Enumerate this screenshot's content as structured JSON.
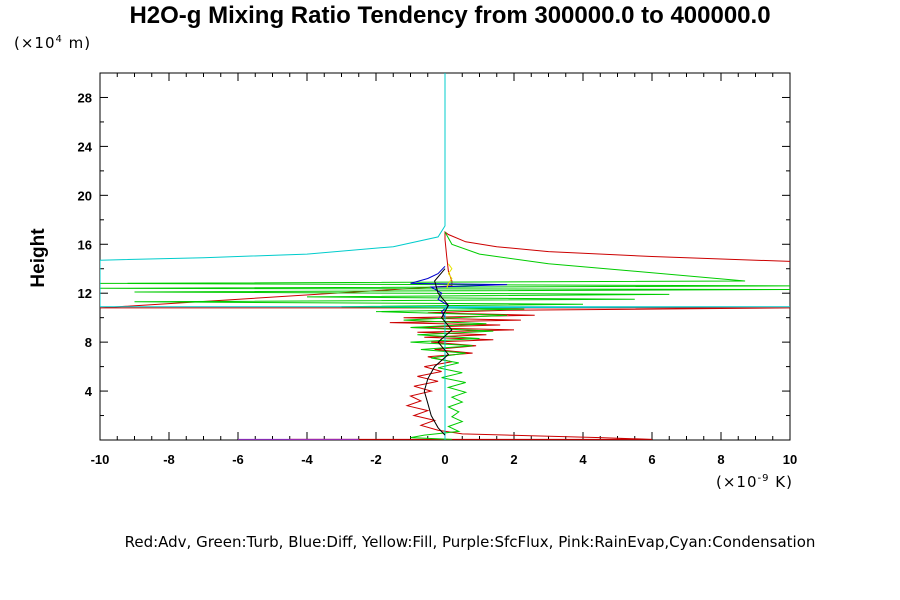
{
  "title": "H2O-g Mixing Ratio Tendency from 300000.0 to 400000.0",
  "y_unit_prefix": "(×10",
  "y_unit_exp": "4",
  "y_unit_suffix": " m)",
  "x_unit_prefix": "(×10",
  "x_unit_exp": "-9",
  "x_unit_suffix": " K)",
  "legend_text": "Red:Adv, Green:Turb, Blue:Diff, Yellow:Fill, Purple:SfcFlux, Pink:RainEvap,Cyan:Condensation",
  "chart_data": {
    "type": "line",
    "title": "H2O-g Mixing Ratio Tendency from 300000.0 to 400000.0",
    "xlabel": "(×10^-9 K)",
    "ylabel": "Height",
    "y_units": "(×10^4 m)",
    "xlim": [
      -10,
      10
    ],
    "ylim": [
      0,
      30
    ],
    "x_ticks": [
      -10,
      -8,
      -6,
      -4,
      -2,
      0,
      2,
      4,
      6,
      8,
      10
    ],
    "y_ticks": [
      4,
      8,
      12,
      16,
      20,
      24,
      28
    ],
    "grid": false,
    "legend": "bottom text",
    "series": [
      {
        "name": "Adv",
        "color": "#cc0000",
        "points": [
          [
            10,
            14.6
          ],
          [
            6,
            15.0
          ],
          [
            3,
            15.4
          ],
          [
            1.5,
            15.8
          ],
          [
            0.6,
            16.2
          ],
          [
            0.1,
            16.8
          ],
          [
            0,
            17.0
          ],
          [
            0,
            16.4
          ],
          [
            0.05,
            15.0
          ],
          [
            0.1,
            13.8
          ],
          [
            0.2,
            13.0
          ],
          [
            0.2,
            12.6
          ],
          [
            -10,
            10.8
          ],
          [
            10,
            10.8
          ],
          [
            1.8,
            10.6
          ],
          [
            -0.5,
            10.4
          ],
          [
            2.6,
            10.2
          ],
          [
            -1.2,
            10.0
          ],
          [
            2.2,
            9.8
          ],
          [
            -1.6,
            9.6
          ],
          [
            1.6,
            9.4
          ],
          [
            -1.0,
            9.2
          ],
          [
            2.0,
            9.0
          ],
          [
            -0.8,
            8.8
          ],
          [
            1.2,
            8.6
          ],
          [
            -0.6,
            8.4
          ],
          [
            1.4,
            8.2
          ],
          [
            -0.4,
            8.0
          ],
          [
            0.9,
            7.7
          ],
          [
            -0.3,
            7.4
          ],
          [
            0.8,
            7.1
          ],
          [
            -0.5,
            6.8
          ],
          [
            0.2,
            6.4
          ],
          [
            -0.6,
            6.0
          ],
          [
            -0.1,
            5.6
          ],
          [
            -0.8,
            5.2
          ],
          [
            -0.2,
            4.8
          ],
          [
            -0.9,
            4.4
          ],
          [
            -0.4,
            4.0
          ],
          [
            -1.0,
            3.6
          ],
          [
            -0.7,
            3.2
          ],
          [
            -1.1,
            2.8
          ],
          [
            -0.5,
            2.4
          ],
          [
            -0.9,
            2.0
          ],
          [
            -0.3,
            1.6
          ],
          [
            -0.7,
            1.2
          ],
          [
            -0.2,
            0.8
          ],
          [
            0.5,
            0.5
          ],
          [
            4.5,
            0.2
          ],
          [
            6.0,
            0.05
          ],
          [
            -4.5,
            0.05
          ]
        ]
      },
      {
        "name": "Turb",
        "color": "#00cc00",
        "points": [
          [
            0,
            17.0
          ],
          [
            0.2,
            16.0
          ],
          [
            1.0,
            15.2
          ],
          [
            3,
            14.4
          ],
          [
            5.5,
            13.8
          ],
          [
            8.7,
            13.0
          ],
          [
            -10,
            12.8
          ],
          [
            10,
            12.6
          ],
          [
            -10,
            12.4
          ],
          [
            10,
            12.3
          ],
          [
            -9,
            12.1
          ],
          [
            6.5,
            11.9
          ],
          [
            -4,
            11.7
          ],
          [
            5.5,
            11.5
          ],
          [
            -9,
            11.3
          ],
          [
            4,
            11.1
          ],
          [
            -3,
            10.9
          ],
          [
            2.3,
            10.7
          ],
          [
            -2,
            10.5
          ],
          [
            1.8,
            10.2
          ],
          [
            -1.2,
            9.8
          ],
          [
            1.2,
            9.5
          ],
          [
            -1.0,
            9.2
          ],
          [
            1.4,
            8.9
          ],
          [
            -0.8,
            8.6
          ],
          [
            1.0,
            8.3
          ],
          [
            -1.0,
            8.0
          ],
          [
            0.8,
            7.7
          ],
          [
            -0.7,
            7.4
          ],
          [
            0.6,
            7.1
          ],
          [
            -0.4,
            6.7
          ],
          [
            0.4,
            6.3
          ],
          [
            -0.2,
            5.9
          ],
          [
            0.5,
            5.5
          ],
          [
            -0.1,
            5.1
          ],
          [
            0.6,
            4.7
          ],
          [
            0.1,
            4.3
          ],
          [
            0.6,
            3.9
          ],
          [
            0.2,
            3.5
          ],
          [
            0.5,
            3.1
          ],
          [
            0.1,
            2.7
          ],
          [
            0.4,
            2.3
          ],
          [
            0.2,
            1.9
          ],
          [
            0.5,
            1.5
          ],
          [
            0.1,
            1.1
          ],
          [
            0.4,
            0.7
          ],
          [
            -0.6,
            0.4
          ],
          [
            -1.0,
            0.2
          ],
          [
            0.2,
            0.05
          ]
        ]
      },
      {
        "name": "Diff",
        "color": "#0000cc",
        "points": [
          [
            0,
            14.2
          ],
          [
            -0.2,
            13.6
          ],
          [
            -0.5,
            13.2
          ],
          [
            -1.0,
            12.8
          ],
          [
            1.8,
            12.7
          ],
          [
            -0.4,
            12.5
          ],
          [
            -0.1,
            12.0
          ],
          [
            -0.2,
            11.5
          ],
          [
            0.1,
            11.0
          ],
          [
            -0.1,
            10.5
          ],
          [
            0,
            10.0
          ],
          [
            0,
            0.3
          ]
        ]
      },
      {
        "name": "Fill",
        "color": "#e6e600",
        "points": [
          [
            0.1,
            14.4
          ],
          [
            0.2,
            14.0
          ],
          [
            0.1,
            13.6
          ],
          [
            0.2,
            13.2
          ],
          [
            0.1,
            12.8
          ],
          [
            0.05,
            12.4
          ]
        ]
      },
      {
        "name": "SfcFlux",
        "color": "#9933cc",
        "points": [
          [
            -6,
            0.05
          ],
          [
            -2.5,
            0.05
          ]
        ]
      },
      {
        "name": "Condensation",
        "color": "#00cccc",
        "points": [
          [
            0,
            30
          ],
          [
            0,
            17.5
          ],
          [
            -0.2,
            16.6
          ],
          [
            -1.5,
            15.8
          ],
          [
            -4,
            15.2
          ],
          [
            -7,
            14.9
          ],
          [
            -10,
            14.7
          ],
          [
            -10,
            10.9
          ],
          [
            10,
            10.9
          ],
          [
            0,
            10.8
          ],
          [
            0,
            0
          ]
        ]
      }
    ],
    "extra_segments": [
      {
        "series": "Adv",
        "color": "#000000",
        "points": [
          [
            0,
            14.0
          ],
          [
            -0.3,
            13.0
          ],
          [
            -0.2,
            12.0
          ],
          [
            0.1,
            11.0
          ],
          [
            -0.1,
            10.0
          ],
          [
            0.2,
            9.0
          ],
          [
            -0.2,
            8.0
          ],
          [
            0.1,
            7.0
          ],
          [
            -0.3,
            6.0
          ],
          [
            -0.5,
            5.0
          ],
          [
            -0.6,
            4.0
          ],
          [
            -0.5,
            3.0
          ],
          [
            -0.4,
            2.0
          ],
          [
            -0.2,
            1.0
          ],
          [
            0,
            0.4
          ]
        ]
      }
    ]
  }
}
